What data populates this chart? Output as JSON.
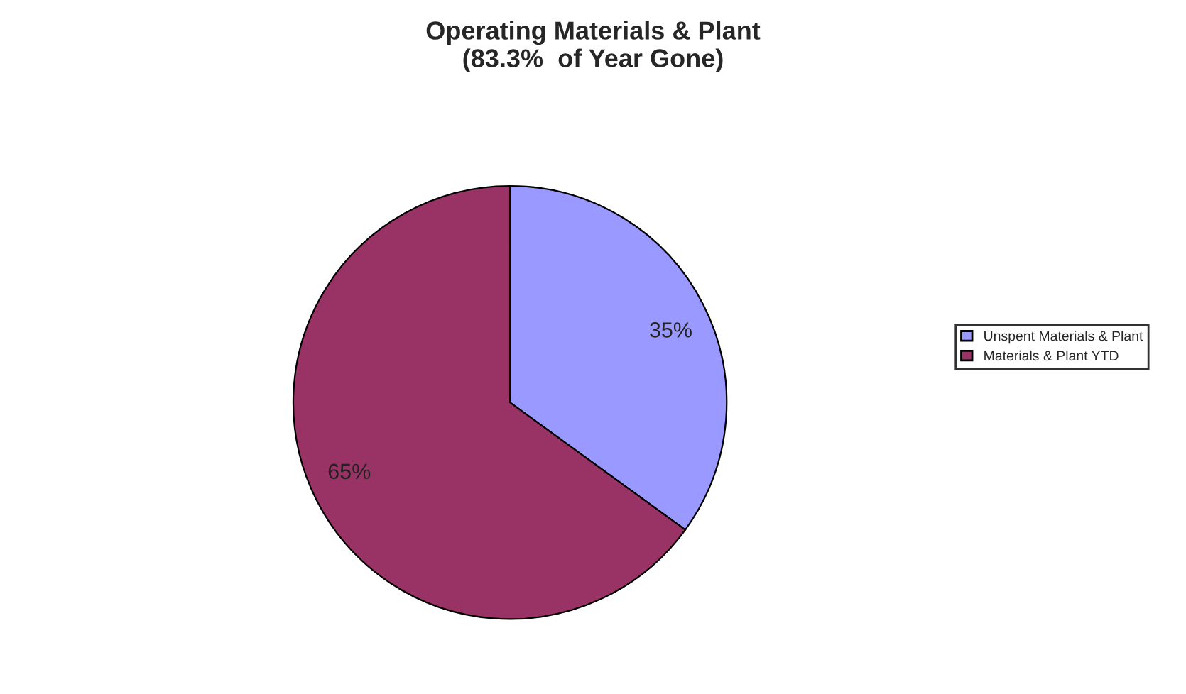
{
  "chart_data": {
    "type": "pie",
    "title": "Operating Materials & Plant\n(83.3%  of Year Gone)",
    "categories": [
      "Unspent Materials & Plant",
      "Materials & Plant YTD"
    ],
    "values": [
      35,
      65
    ],
    "colors": [
      "#9999ff",
      "#993366"
    ],
    "value_labels": [
      "35%",
      "65%"
    ],
    "legend": "right"
  }
}
